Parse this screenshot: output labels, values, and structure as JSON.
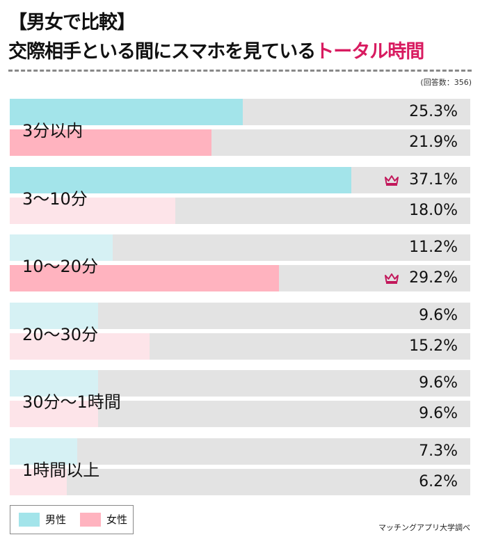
{
  "header": {
    "title_line1": "【男女で比較】",
    "title_line2_main": "交際相手といる間にスマホを見ている",
    "title_line2_highlight": "トータル時間",
    "respondents": "(回答数：356)"
  },
  "colors": {
    "male": "#a3e4ea",
    "female": "#ffb3bf",
    "male_faded": "#d6f1f4",
    "female_faded": "#fde4e9",
    "track": "#e3e3e3",
    "highlight": "#d81b60",
    "crown": "#c2185b"
  },
  "chart_data": {
    "type": "bar",
    "orientation": "horizontal",
    "categories": [
      "3分以内",
      "3〜10分",
      "10〜20分",
      "20〜30分",
      "30分〜1時間",
      "1時間以上"
    ],
    "series": [
      {
        "name": "男性",
        "values": [
          25.3,
          37.1,
          11.2,
          9.6,
          9.6,
          7.3
        ]
      },
      {
        "name": "女性",
        "values": [
          21.9,
          18.0,
          29.2,
          15.2,
          9.6,
          6.2
        ]
      }
    ],
    "value_labels": {
      "male": [
        "25.3%",
        "37.1%",
        "11.2%",
        "9.6%",
        "9.6%",
        "7.3%"
      ],
      "female": [
        "21.9%",
        "18.0%",
        "29.2%",
        "15.2%",
        "9.6%",
        "6.2%"
      ]
    },
    "top_category": {
      "male": "3〜10分",
      "female": "10〜20分"
    },
    "xlim": [
      0,
      50
    ],
    "unit": "%",
    "grid": false,
    "legend_position": "bottom-left"
  },
  "legend": {
    "male": "男性",
    "female": "女性"
  },
  "footer": {
    "source": "マッチングアプリ大学調べ"
  }
}
